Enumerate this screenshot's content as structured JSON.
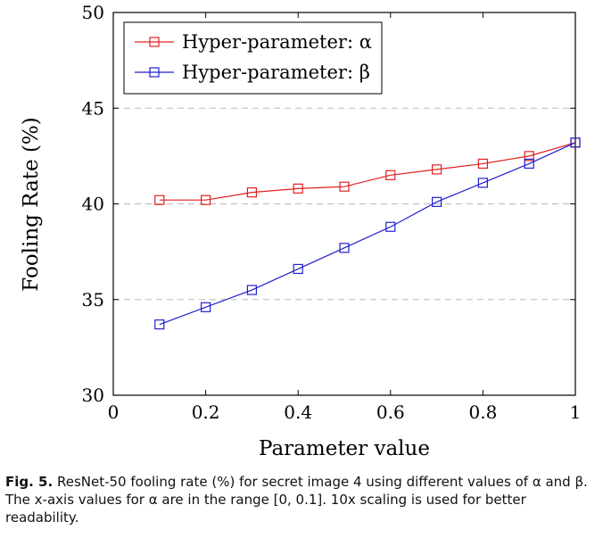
{
  "chart_data": {
    "type": "line",
    "xlabel": "Parameter value",
    "ylabel": "Fooling Rate (%)",
    "xlim": [
      0,
      1
    ],
    "ylim": [
      30,
      50
    ],
    "xticks": [
      0,
      0.2,
      0.4,
      0.6,
      0.8,
      1
    ],
    "xtick_labels": [
      "0",
      "0.2",
      "0.4",
      "0.6",
      "0.8",
      "1"
    ],
    "yticks": [
      30,
      35,
      40,
      45,
      50
    ],
    "ytick_labels": [
      "30",
      "35",
      "40",
      "45",
      "50"
    ],
    "grid": "horizontal dashed",
    "legend_position": "top-left",
    "series": [
      {
        "name": "Hyper-parameter: α",
        "color": "#e02020",
        "marker": "square",
        "x": [
          0.1,
          0.2,
          0.3,
          0.4,
          0.5,
          0.6,
          0.7,
          0.8,
          0.9,
          1.0
        ],
        "y": [
          40.2,
          40.2,
          40.6,
          40.8,
          40.9,
          41.5,
          41.8,
          42.1,
          42.5,
          43.2
        ]
      },
      {
        "name": "Hyper-parameter: β",
        "color": "#2020d0",
        "marker": "square",
        "x": [
          0.1,
          0.2,
          0.3,
          0.4,
          0.5,
          0.6,
          0.7,
          0.8,
          0.9,
          1.0
        ],
        "y": [
          33.7,
          34.6,
          35.5,
          36.6,
          37.7,
          38.8,
          40.1,
          41.1,
          42.1,
          43.2
        ]
      }
    ]
  },
  "caption": {
    "label": "Fig. 5.",
    "text": "ResNet-50 fooling rate (%) for secret image 4 using different values of α and β. The x-axis values for α are in the range [0, 0.1]. 10x scaling is used for better readability."
  }
}
